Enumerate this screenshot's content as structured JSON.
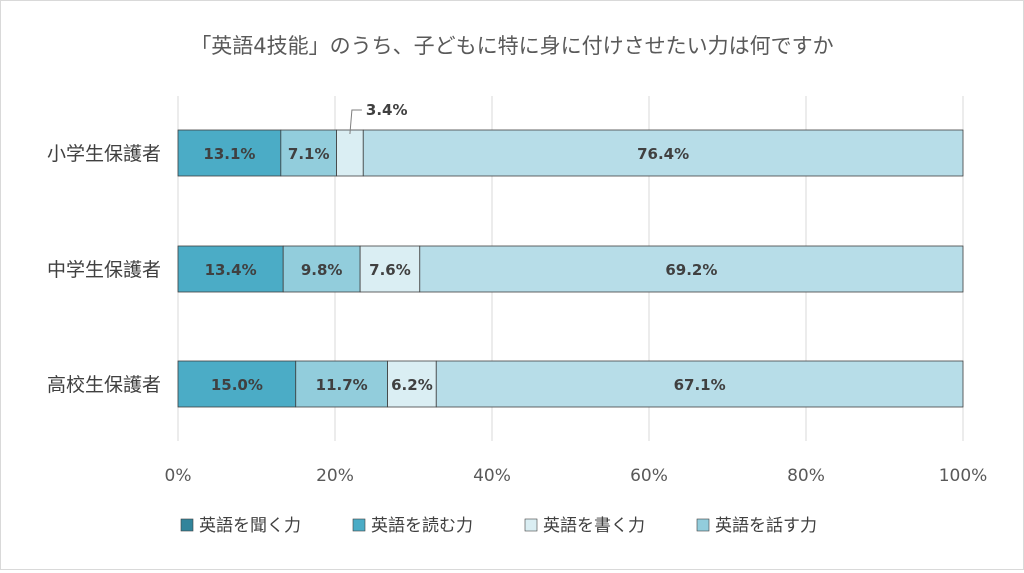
{
  "chart_data": {
    "type": "bar",
    "orientation": "horizontal",
    "stacked": true,
    "percent_stacked": true,
    "title": "「英語4技能」のうち、子どもに特に身に付けさせたい力は何ですか",
    "categories": [
      "小学生保護者",
      "中学生保護者",
      "高校生保護者"
    ],
    "series": [
      {
        "name": "英語を聞く力",
        "values": [
          13.1,
          13.4,
          15.0
        ],
        "color": "#4bacc6",
        "labels": [
          "13.1%",
          "13.4%",
          "15.0%"
        ]
      },
      {
        "name": "英語を読む力",
        "values": [
          7.1,
          9.8,
          11.7
        ],
        "color": "#92cddc",
        "labels": [
          "7.1%",
          "9.8%",
          "11.7%"
        ]
      },
      {
        "name": "英語を書く力",
        "values": [
          3.4,
          7.6,
          6.2
        ],
        "color": "#daeef3",
        "labels": [
          "3.4%",
          "7.6%",
          "6.2%"
        ]
      },
      {
        "name": "英語を話す力",
        "values": [
          76.4,
          69.2,
          67.1
        ],
        "color": "#b7dde8",
        "labels": [
          "76.4%",
          "69.2%",
          "67.1%"
        ]
      }
    ],
    "xlim": [
      0,
      100
    ],
    "xticks": [
      "0%",
      "20%",
      "40%",
      "60%",
      "80%",
      "100%"
    ],
    "grid": true,
    "legend_position": "bottom",
    "legend_marker_colors": [
      "#31849b",
      "#4bacc6",
      "#daeef3",
      "#92cddc"
    ]
  }
}
